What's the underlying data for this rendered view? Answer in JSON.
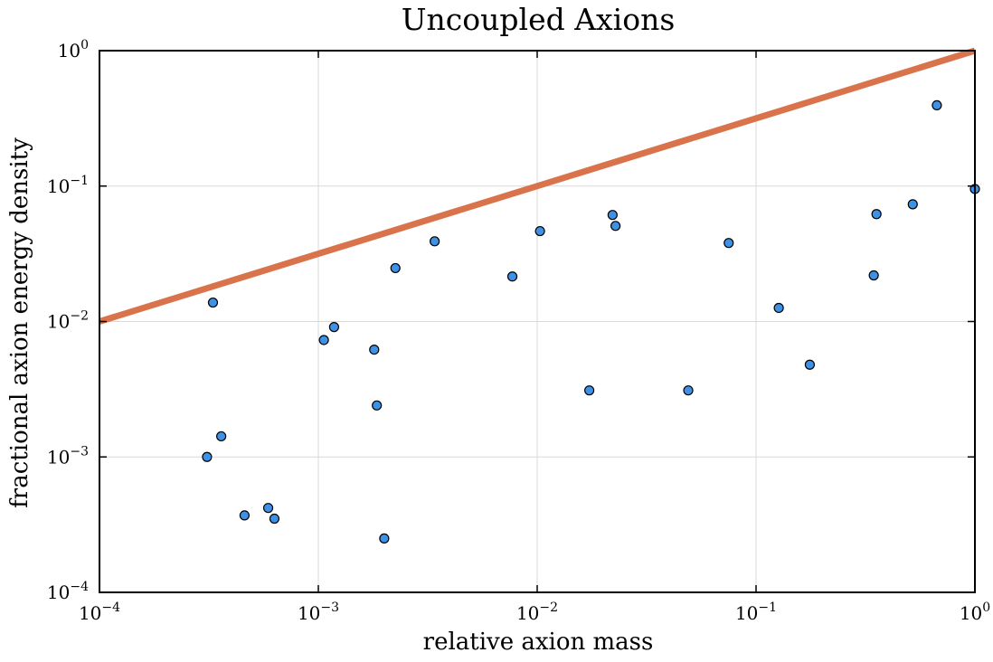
{
  "chart_data": {
    "type": "scatter",
    "title": "Uncoupled Axions",
    "xlabel": "relative axion mass",
    "ylabel": "fractional axion energy density",
    "xscale": "log",
    "yscale": "log",
    "xlim": [
      0.0001,
      1
    ],
    "ylim": [
      0.0001,
      1
    ],
    "x_ticks": [
      {
        "base": "10",
        "exp": "−4",
        "value": 0.0001
      },
      {
        "base": "10",
        "exp": "−3",
        "value": 0.001
      },
      {
        "base": "10",
        "exp": "−2",
        "value": 0.01
      },
      {
        "base": "10",
        "exp": "−1",
        "value": 0.1
      },
      {
        "base": "10",
        "exp": "0",
        "value": 1
      }
    ],
    "y_ticks": [
      {
        "base": "10",
        "exp": "−4",
        "value": 0.0001
      },
      {
        "base": "10",
        "exp": "−3",
        "value": 0.001
      },
      {
        "base": "10",
        "exp": "−2",
        "value": 0.01
      },
      {
        "base": "10",
        "exp": "−1",
        "value": 0.1
      },
      {
        "base": "10",
        "exp": "0",
        "value": 1
      }
    ],
    "grid": true,
    "legend": "none",
    "series": [
      {
        "type": "line",
        "color": "#d9734b",
        "points": [
          [
            0.0001,
            0.01
          ],
          [
            1,
            1
          ]
        ]
      },
      {
        "type": "scatter",
        "color": "#3d92e6",
        "edge_color": "#000000",
        "points": [
          [
            0.00031,
            0.001
          ],
          [
            0.00033,
            0.0138
          ],
          [
            0.00036,
            0.00142
          ],
          [
            0.00046,
            0.00037
          ],
          [
            0.00059,
            0.00042
          ],
          [
            0.00063,
            0.00035
          ],
          [
            0.00106,
            0.0073
          ],
          [
            0.00118,
            0.0091
          ],
          [
            0.0018,
            0.0062
          ],
          [
            0.00185,
            0.0024
          ],
          [
            0.002,
            0.00025
          ],
          [
            0.00225,
            0.0248
          ],
          [
            0.0034,
            0.0391
          ],
          [
            0.0077,
            0.0215
          ],
          [
            0.0103,
            0.0465
          ],
          [
            0.0173,
            0.0031
          ],
          [
            0.0221,
            0.0612
          ],
          [
            0.0228,
            0.0508
          ],
          [
            0.049,
            0.0031
          ],
          [
            0.075,
            0.038
          ],
          [
            0.127,
            0.0126
          ],
          [
            0.176,
            0.0048
          ],
          [
            0.345,
            0.0219
          ],
          [
            0.355,
            0.0621
          ],
          [
            0.52,
            0.0734
          ],
          [
            0.67,
            0.395
          ],
          [
            1.0,
            0.0952
          ]
        ]
      }
    ]
  }
}
